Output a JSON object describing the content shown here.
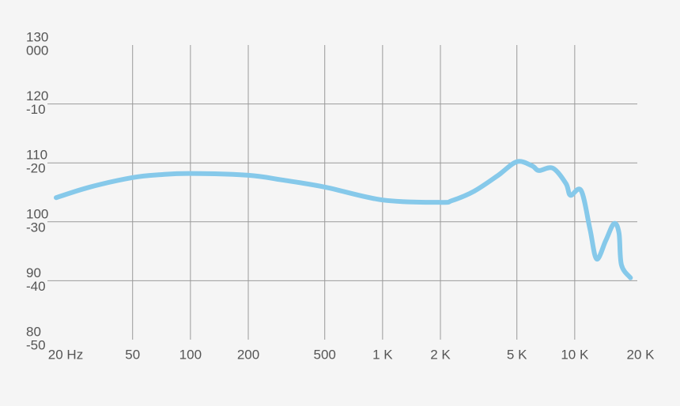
{
  "chart_data": {
    "type": "line",
    "x_scale": "log",
    "xlim": [
      20,
      20000
    ],
    "xticks": [
      {
        "value": 20,
        "label": "20 Hz"
      },
      50,
      100,
      200,
      500,
      {
        "value": 1000,
        "label": "1 K"
      },
      {
        "value": 2000,
        "label": "2 K"
      },
      {
        "value": 5000,
        "label": "5 K"
      },
      {
        "value": 10000,
        "label": "10 K"
      },
      {
        "value": 20000,
        "label": "20 K"
      }
    ],
    "ylim": [
      80,
      130
    ],
    "yticks": [
      80,
      90,
      100,
      110,
      120,
      130
    ],
    "y2lim": [
      -50,
      0
    ],
    "y2ticks": [
      -50,
      -40,
      -30,
      -20,
      -10,
      {
        "value": 0,
        "label": "000"
      }
    ],
    "grid": true,
    "series": [
      {
        "color": "#86c9ea",
        "x": [
          20,
          30,
          50,
          70,
          100,
          200,
          300,
          500,
          1000,
          2000,
          2300,
          3000,
          4000,
          5000,
          6000,
          6500,
          7700,
          9000,
          9500,
          10800,
          12000,
          13000,
          14500,
          16000,
          17000,
          17500,
          19500
        ],
        "values": [
          104.1,
          105.9,
          107.5,
          108.0,
          108.2,
          107.9,
          107.1,
          105.9,
          103.7,
          103.3,
          103.6,
          105.2,
          107.9,
          110.2,
          109.5,
          108.7,
          109.1,
          106.5,
          104.5,
          105.3,
          98.8,
          93.7,
          96.8,
          99.7,
          98.1,
          92.7,
          90.5
        ]
      }
    ]
  }
}
